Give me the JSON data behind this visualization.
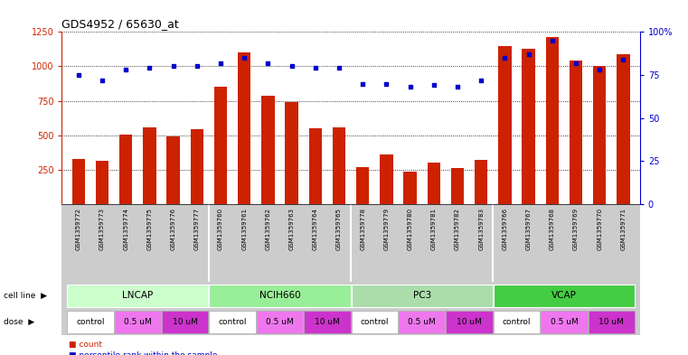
{
  "title": "GDS4952 / 65630_at",
  "samples": [
    "GSM1359772",
    "GSM1359773",
    "GSM1359774",
    "GSM1359775",
    "GSM1359776",
    "GSM1359777",
    "GSM1359760",
    "GSM1359761",
    "GSM1359762",
    "GSM1359763",
    "GSM1359764",
    "GSM1359765",
    "GSM1359778",
    "GSM1359779",
    "GSM1359780",
    "GSM1359781",
    "GSM1359782",
    "GSM1359783",
    "GSM1359766",
    "GSM1359767",
    "GSM1359768",
    "GSM1359769",
    "GSM1359770",
    "GSM1359771"
  ],
  "counts": [
    330,
    315,
    505,
    560,
    490,
    545,
    855,
    1100,
    790,
    740,
    550,
    555,
    270,
    360,
    235,
    300,
    260,
    320,
    1150,
    1130,
    1210,
    1040,
    1000,
    1090
  ],
  "percentile_ranks": [
    75,
    72,
    78,
    79,
    80,
    80,
    82,
    85,
    82,
    80,
    79,
    79,
    70,
    70,
    68,
    69,
    68,
    72,
    85,
    87,
    95,
    82,
    78,
    84
  ],
  "cell_lines": [
    {
      "name": "LNCAP",
      "start": 0,
      "end": 6,
      "color": "#ccffcc"
    },
    {
      "name": "NCIH660",
      "start": 6,
      "end": 12,
      "color": "#99ee99"
    },
    {
      "name": "PC3",
      "start": 12,
      "end": 18,
      "color": "#aaddaa"
    },
    {
      "name": "VCAP",
      "start": 18,
      "end": 24,
      "color": "#44cc44"
    }
  ],
  "doses": [
    {
      "label": "control",
      "start": 0,
      "end": 2,
      "color": "#ffffff"
    },
    {
      "label": "0.5 uM",
      "start": 2,
      "end": 4,
      "color": "#ee77ee"
    },
    {
      "label": "10 uM",
      "start": 4,
      "end": 6,
      "color": "#cc33cc"
    },
    {
      "label": "control",
      "start": 6,
      "end": 8,
      "color": "#ffffff"
    },
    {
      "label": "0.5 uM",
      "start": 8,
      "end": 10,
      "color": "#ee77ee"
    },
    {
      "label": "10 uM",
      "start": 10,
      "end": 12,
      "color": "#cc33cc"
    },
    {
      "label": "control",
      "start": 12,
      "end": 14,
      "color": "#ffffff"
    },
    {
      "label": "0.5 uM",
      "start": 14,
      "end": 16,
      "color": "#ee77ee"
    },
    {
      "label": "10 uM",
      "start": 16,
      "end": 18,
      "color": "#cc33cc"
    },
    {
      "label": "control",
      "start": 18,
      "end": 20,
      "color": "#ffffff"
    },
    {
      "label": "0.5 uM",
      "start": 20,
      "end": 22,
      "color": "#ee77ee"
    },
    {
      "label": "10 uM",
      "start": 22,
      "end": 24,
      "color": "#cc33cc"
    }
  ],
  "bar_color": "#cc2200",
  "dot_color": "#0000cc",
  "ylim_left": [
    0,
    1250
  ],
  "ylim_right": [
    0,
    100
  ],
  "yticks_left": [
    250,
    500,
    750,
    1000,
    1250
  ],
  "yticks_right": [
    0,
    25,
    50,
    75,
    100
  ],
  "tick_label_bg": "#cccccc",
  "cell_line_row_bg": "#cccccc",
  "dose_row_bg": "#cccccc"
}
